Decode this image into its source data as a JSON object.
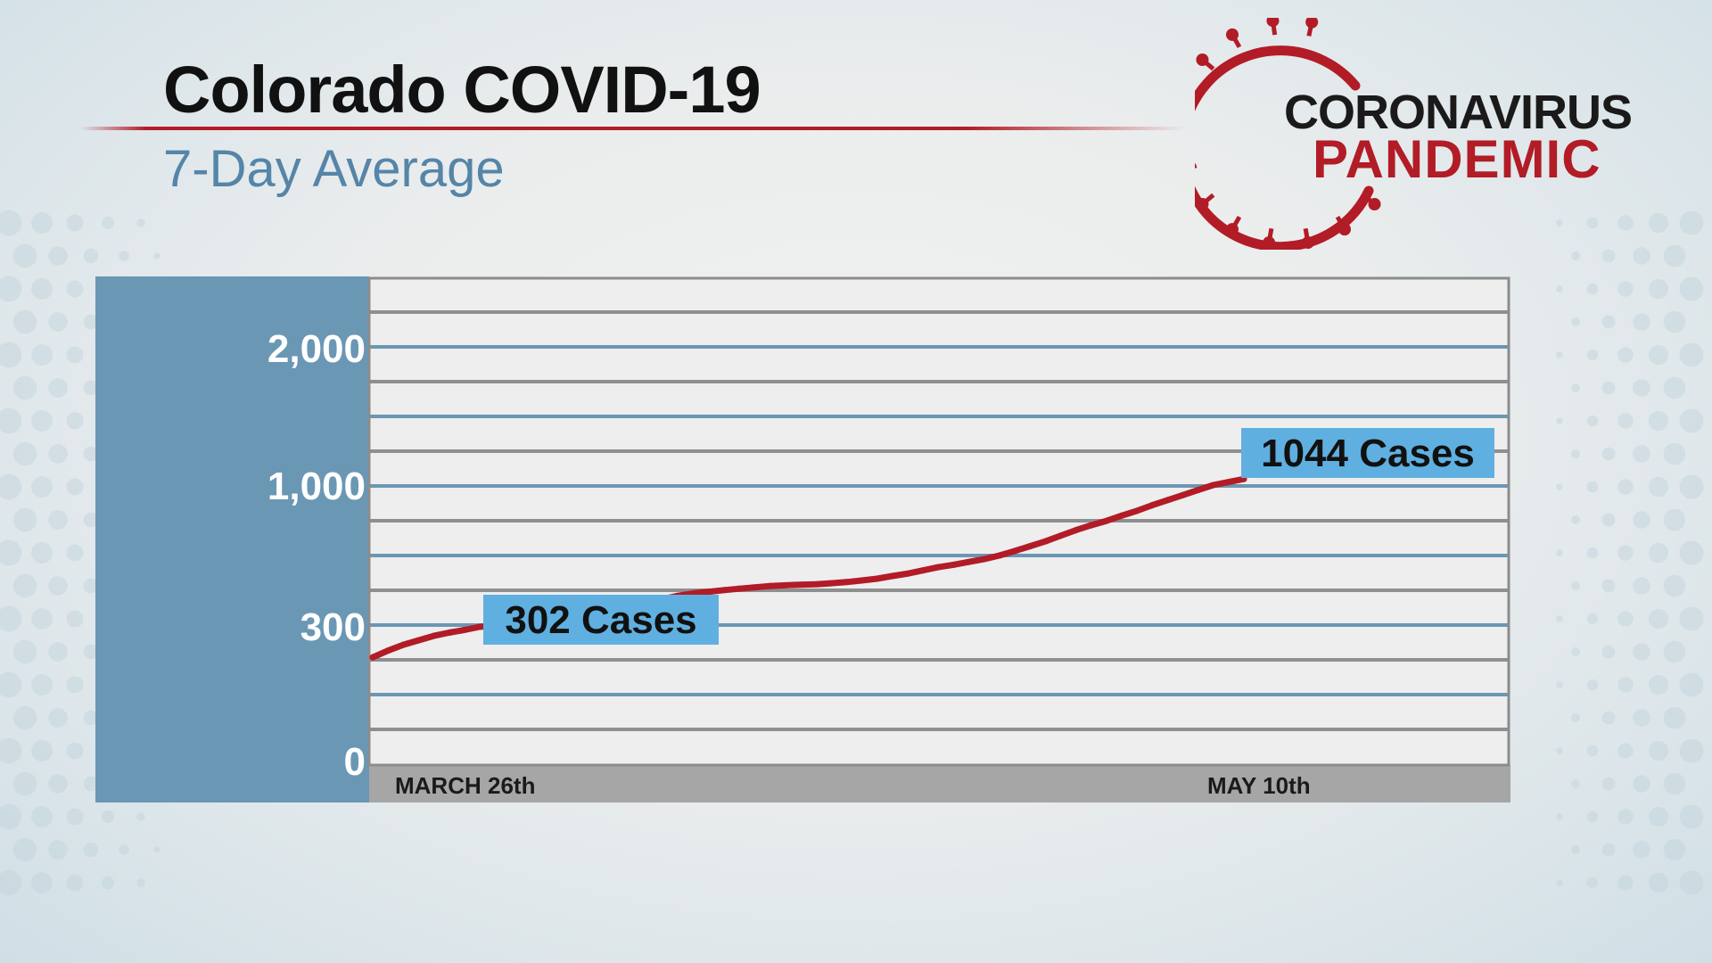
{
  "header": {
    "title": "Colorado COVID-19",
    "subtitle": "7-Day Average"
  },
  "logo": {
    "line1": "CORONAVIRUS",
    "line2": "PANDEMIC",
    "icon": "virus-icon"
  },
  "colors": {
    "line": "#b21c26",
    "accent_blue": "#6a97b4",
    "callout": "#5fb0e0",
    "brand_red": "#b21c26"
  },
  "chart_data": {
    "type": "line",
    "title": "Colorado COVID-19",
    "subtitle": "7-Day Average",
    "xlabel": "",
    "ylabel": "",
    "x_tick_labels": [
      "MARCH 26th",
      "MAY 10th"
    ],
    "y_tick_labels": [
      "0",
      "300",
      "1,000",
      "2,000"
    ],
    "grid": true,
    "series": [
      {
        "values": [
          230,
          245,
          258,
          268,
          278,
          285,
          291,
          298,
          302,
          312,
          322,
          332,
          342,
          352,
          364,
          376,
          388,
          402,
          418,
          434,
          450,
          462,
          470,
          478,
          485,
          492,
          498,
          502,
          505,
          507,
          512,
          518,
          526,
          535,
          548,
          560,
          576,
          592,
          604,
          618,
          632,
          650,
          672,
          696,
          720,
          748,
          776,
          800,
          822,
          848,
          872,
          900,
          925,
          950,
          975,
          1000,
          1022,
          1044
        ]
      }
    ],
    "annotations": [
      {
        "text": "302 Cases",
        "value": 302,
        "point_index": 8
      },
      {
        "text": "1044 Cases",
        "value": 1044,
        "point_index": 57
      }
    ]
  }
}
